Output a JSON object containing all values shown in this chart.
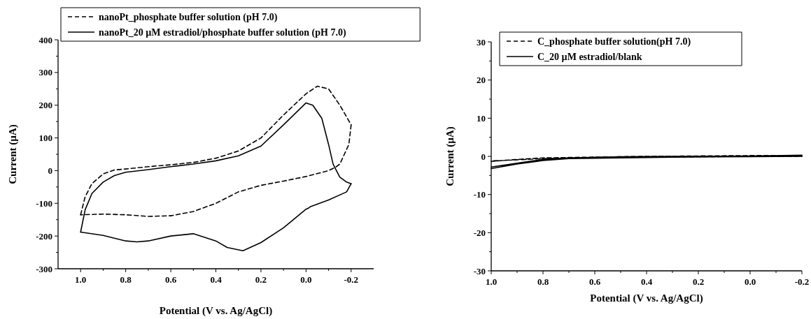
{
  "chart_data": [
    {
      "type": "line",
      "xlabel": "Potential (V vs. Ag/AgCl)",
      "ylabel": "Current (µA)",
      "xlim": [
        1.1,
        -0.3
      ],
      "ylim": [
        -300,
        400
      ],
      "xticks": [
        {
          "value": 1.0,
          "label": "1.0"
        },
        {
          "value": 0.9,
          "label": null
        },
        {
          "value": 0.8,
          "label": "0.8"
        },
        {
          "value": 0.7,
          "label": null
        },
        {
          "value": 0.6,
          "label": "0.6"
        },
        {
          "value": 0.5,
          "label": null
        },
        {
          "value": 0.4,
          "label": "0.4"
        },
        {
          "value": 0.3,
          "label": null
        },
        {
          "value": 0.2,
          "label": "0.2"
        },
        {
          "value": 0.1,
          "label": null
        },
        {
          "value": 0.0,
          "label": "0.0"
        },
        {
          "value": -0.1,
          "label": null
        },
        {
          "value": -0.2,
          "label": "-0.2"
        }
      ],
      "yticks": [
        -300,
        {
          "value": -250,
          "label": null
        },
        -200,
        {
          "value": -150,
          "label": null
        },
        -100,
        {
          "value": -50,
          "label": null
        },
        0,
        {
          "value": 50,
          "label": null
        },
        100,
        {
          "value": 150,
          "label": null
        },
        200,
        {
          "value": 250,
          "label": null
        },
        300,
        {
          "value": 350,
          "label": null
        },
        400
      ],
      "legend": "top left",
      "marker": "none",
      "grid": false,
      "series": [
        {
          "name": "nanoPt_phosphate buffer solution (pH 7.0)",
          "color": "#000000",
          "line_style": "dashed",
          "x": [
            1.0,
            0.98,
            0.95,
            0.9,
            0.85,
            0.8,
            0.7,
            0.6,
            0.5,
            0.4,
            0.3,
            0.2,
            0.1,
            0.0,
            -0.05,
            -0.1,
            -0.15,
            -0.2
          ],
          "values": [
            -135,
            -80,
            -40,
            -10,
            2,
            5,
            12,
            18,
            25,
            38,
            60,
            100,
            170,
            235,
            258,
            250,
            200,
            140
          ]
        },
        {
          "color": "#000000",
          "line_style": "dashed",
          "x": [
            -0.2,
            -0.19,
            -0.15,
            -0.13,
            -0.1,
            0.0,
            0.1,
            0.2,
            0.3,
            0.4,
            0.5,
            0.6,
            0.7,
            0.8,
            0.9,
            1.0
          ],
          "values": [
            140,
            80,
            20,
            10,
            0,
            -18,
            -32,
            -45,
            -65,
            -100,
            -125,
            -138,
            -140,
            -135,
            -133,
            -135
          ]
        },
        {
          "name": "nanoPt_20 µM estradiol/phosphate buffer solution (pH 7.0)",
          "color": "#000000",
          "line_style": "solid",
          "x": [
            1.0,
            0.98,
            0.95,
            0.9,
            0.85,
            0.8,
            0.7,
            0.6,
            0.5,
            0.4,
            0.3,
            0.2,
            0.1,
            0.0,
            -0.03,
            -0.07,
            -0.1,
            -0.12,
            -0.15,
            -0.18,
            -0.2
          ],
          "values": [
            -188,
            -120,
            -70,
            -35,
            -15,
            -5,
            3,
            12,
            20,
            30,
            45,
            75,
            140,
            207,
            200,
            160,
            80,
            20,
            -20,
            -35,
            -40
          ]
        },
        {
          "color": "#000000",
          "line_style": "solid",
          "x": [
            -0.2,
            -0.18,
            -0.1,
            -0.02,
            -0.01,
            0.0,
            0.1,
            0.2,
            0.28,
            0.35,
            0.4,
            0.5,
            0.6,
            0.7,
            0.75,
            0.8,
            0.9,
            1.0
          ],
          "values": [
            -40,
            -65,
            -90,
            -110,
            -115,
            -118,
            -175,
            -220,
            -245,
            -235,
            -215,
            -193,
            -200,
            -215,
            -218,
            -215,
            -198,
            -188
          ]
        }
      ]
    },
    {
      "type": "line",
      "xlabel": "Potential (V vs. Ag/AgCl)",
      "ylabel": "Current (µA)",
      "xlim": [
        1.0,
        -0.2
      ],
      "ylim": [
        -30,
        30
      ],
      "xticks": [
        {
          "value": 1.0,
          "label": "1.0"
        },
        {
          "value": 0.9,
          "label": null
        },
        {
          "value": 0.8,
          "label": "0.8"
        },
        {
          "value": 0.7,
          "label": null
        },
        {
          "value": 0.6,
          "label": "0.6"
        },
        {
          "value": 0.5,
          "label": null
        },
        {
          "value": 0.4,
          "label": "0.4"
        },
        {
          "value": 0.3,
          "label": null
        },
        {
          "value": 0.2,
          "label": "0.2"
        },
        {
          "value": 0.1,
          "label": null
        },
        {
          "value": 0.0,
          "label": "0.0"
        },
        {
          "value": -0.1,
          "label": null
        },
        {
          "value": -0.2,
          "label": "-0.2"
        }
      ],
      "yticks": [
        -30,
        {
          "value": -25,
          "label": null
        },
        -20,
        {
          "value": -15,
          "label": null
        },
        -10,
        {
          "value": -5,
          "label": null
        },
        0,
        {
          "value": 5,
          "label": null
        },
        10,
        {
          "value": 15,
          "label": null
        },
        20,
        {
          "value": 25,
          "label": null
        },
        30
      ],
      "legend": "top left",
      "marker": "none",
      "grid": false,
      "series": [
        {
          "name": "C_phosphate buffer solution(pH 7.0)",
          "color": "#000000",
          "line_style": "dashed",
          "x": [
            1.0,
            0.9,
            0.8,
            0.6,
            0.4,
            0.2,
            0.0,
            -0.2,
            -0.2,
            0.0,
            0.2,
            0.4,
            0.6,
            0.8,
            0.9,
            1.0
          ],
          "values": [
            -1.3,
            -0.8,
            -0.4,
            -0.2,
            0,
            0.1,
            0.2,
            0.2,
            0,
            0,
            -0.1,
            -0.2,
            -0.3,
            -0.6,
            -0.9,
            -1.2
          ]
        },
        {
          "name": "C_20 µM estradiol/blank",
          "color": "#000000",
          "line_style": "solid",
          "x": [
            1.0,
            0.9,
            0.8,
            0.7,
            0.5,
            0.3,
            0.0,
            -0.2,
            -0.2,
            0.0,
            0.3,
            0.5,
            0.7,
            0.8,
            0.9,
            1.0
          ],
          "values": [
            -2.8,
            -1.8,
            -0.8,
            -0.4,
            -0.1,
            0,
            0.1,
            0.3,
            0,
            -0.1,
            -0.2,
            -0.4,
            -0.6,
            -1.1,
            -2.0,
            -3.2
          ]
        }
      ]
    }
  ]
}
